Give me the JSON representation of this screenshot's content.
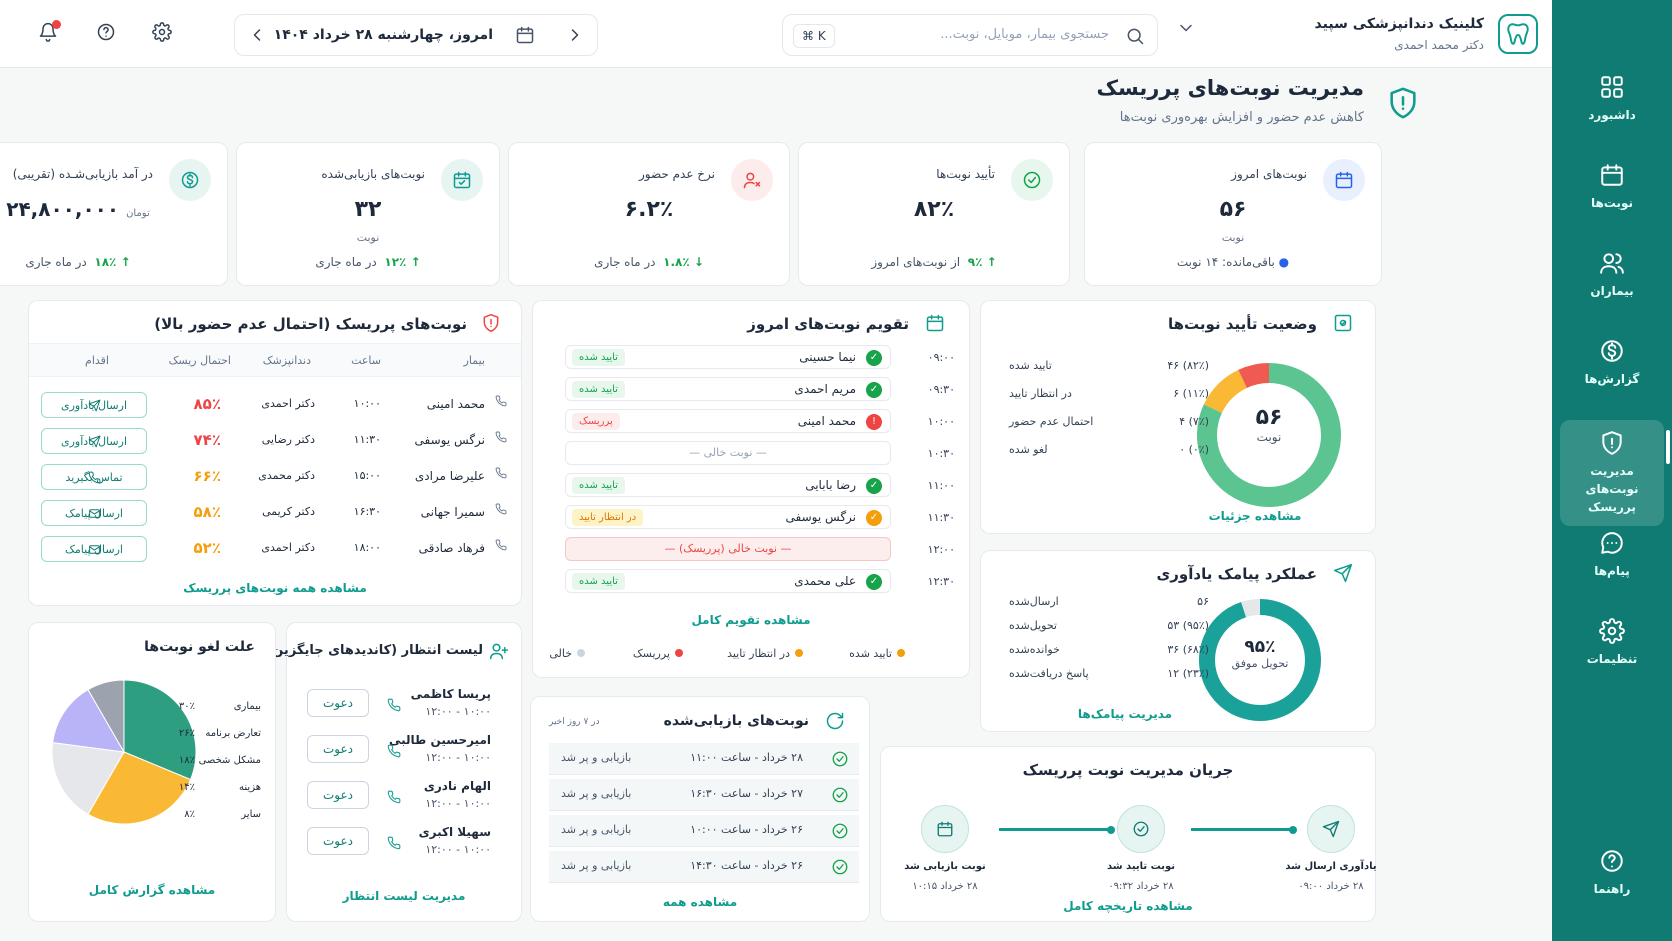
{
  "sidebar": {
    "items": [
      {
        "label": "داشبورد",
        "icon": "grid-icon"
      },
      {
        "label": "نوبت‌ها",
        "icon": "calendar-icon"
      },
      {
        "label": "بیماران",
        "icon": "users-icon"
      },
      {
        "label": "گزارش‌ها",
        "icon": "dollar-icon"
      },
      {
        "label": "مدیریت نوبت‌های پرریسک",
        "icon": "shield-icon",
        "active": true
      },
      {
        "label": "پیام‌ها",
        "icon": "message-icon"
      },
      {
        "label": "تنظیمات",
        "icon": "gear-icon"
      }
    ],
    "help_label": "راهنما"
  },
  "header": {
    "clinic_name": "کلینیک دندانپزشکی سپید",
    "doctor": "دکتر محمد احمدی",
    "search_placeholder": "جستجوی بیمار، موبایل، نوبت...",
    "search_kbd": "⌘ K",
    "date_text": "امروز، چهارشنبه ۲۸ خرداد ۱۴۰۴"
  },
  "page": {
    "title": "مدیریت نوبت‌های پرریسک",
    "subtitle": "کاهش عدم حضور و افزایش بهره‌وری نوبت‌ها"
  },
  "stats": [
    {
      "label": "نوبت‌های امروز",
      "value": "۵۶",
      "unit": "نوبت",
      "foot": "باقی‌مانده: ۱۴ نوبت",
      "foot_change": "",
      "icon": "calendar-icon",
      "color": "#2563eb"
    },
    {
      "label": "تأیید نوبت‌ها",
      "value": "۸۲٪",
      "unit": "",
      "foot": "از نوبت‌های امروز",
      "foot_change": "۹٪",
      "icon": "check-circle-icon",
      "color": "#16a34a"
    },
    {
      "label": "نرخ عدم حضور",
      "value": "۶.۲٪",
      "unit": "",
      "foot": "در ماه جاری",
      "foot_change": "۱.۸٪",
      "icon": "user-x-icon",
      "color": "#ef4444"
    },
    {
      "label": "نوبت‌های بازیابی‌شده",
      "value": "۳۲",
      "unit": "نوبت",
      "foot": "در ماه جاری",
      "foot_change": "۱۲٪",
      "icon": "calendar-check-icon",
      "color": "#0f9c8e"
    },
    {
      "label": "در آمد بازیابی‌شـده (تقریبی)",
      "value": "۲۴,۸۰۰,۰۰۰",
      "unit": "تومان",
      "foot": "در ماه جاری",
      "foot_change": "۱۸٪",
      "icon": "dollar-icon",
      "color": "#0f9c8e"
    }
  ],
  "risk": {
    "title": "نوبت‌های پرریسک (احتمال عدم حضور بالا)",
    "headers": [
      "بیمار",
      "ساعت",
      "دندانپزشک",
      "احتمال ریسک",
      "اقدام"
    ],
    "rows": [
      {
        "patient": "محمد امینی",
        "time": "۱۰:۰۰",
        "dentist": "دکتر احمدی",
        "risk": "۸۵٪",
        "risk_color": "#ef4444",
        "action": "ارسال یادآوری",
        "action_icon": "send-icon"
      },
      {
        "patient": "نرگس یوسفی",
        "time": "۱۱:۳۰",
        "dentist": "دکتر رضایی",
        "risk": "۷۴٪",
        "risk_color": "#ef4444",
        "action": "ارسال یادآوری",
        "action_icon": "send-icon"
      },
      {
        "patient": "علیرضا مرادی",
        "time": "۱۵:۰۰",
        "dentist": "دکتر محمدی",
        "risk": "۶۶٪",
        "risk_color": "#f59e0b",
        "action": "تماس بگیرید",
        "action_icon": "phone-icon"
      },
      {
        "patient": "سمیرا جهانی",
        "time": "۱۶:۳۰",
        "dentist": "دکتر کریمی",
        "risk": "۵۸٪",
        "risk_color": "#f59e0b",
        "action": "ارسال پیامک",
        "action_icon": "mail-icon"
      },
      {
        "patient": "فرهاد صادقی",
        "time": "۱۸:۰۰",
        "dentist": "دکتر احمدی",
        "risk": "۵۲٪",
        "risk_color": "#f59e0b",
        "action": "ارسال پیامک",
        "action_icon": "mail-icon"
      }
    ],
    "link": "مشاهده همه نوبت‌های پرریسک"
  },
  "calendar": {
    "title": "تقویم نوبت‌های امروز",
    "slots": [
      {
        "time": "۰۹:۰۰",
        "name": "نیما حسینی",
        "status": "تایید شده",
        "kind": "ok"
      },
      {
        "time": "۰۹:۳۰",
        "name": "مریم احمدی",
        "status": "تایید شده",
        "kind": "ok"
      },
      {
        "time": "۱۰:۰۰",
        "name": "محمد امینی",
        "status": "پرریسک",
        "kind": "risk"
      },
      {
        "time": "۱۰:۳۰",
        "name": "— نوبت خالی —",
        "status": "",
        "kind": "empty"
      },
      {
        "time": "۱۱:۰۰",
        "name": "رضا بابایی",
        "status": "تایید شده",
        "kind": "ok"
      },
      {
        "time": "۱۱:۳۰",
        "name": "نرگس یوسفی",
        "status": "در انتظار تایید",
        "kind": "pending"
      },
      {
        "time": "۱۲:۰۰",
        "name": "— نوبت خالی (پرریسک) —",
        "status": "",
        "kind": "empty-risk"
      },
      {
        "time": "۱۲:۳۰",
        "name": "علی محمدی",
        "status": "تایید شده",
        "kind": "ok"
      }
    ],
    "link": "مشاهده تقویم کامل",
    "legend": [
      {
        "label": "تایید شده",
        "color": "#f59e0b"
      },
      {
        "label": "در انتظار تایید",
        "color": "#f59e0b"
      },
      {
        "label": "پرریسک",
        "color": "#ef4444"
      },
      {
        "label": "خالی",
        "color": "#cbd5e1"
      }
    ]
  },
  "status": {
    "title": "وضعیت تأیید نوبت‌ها",
    "rows": [
      {
        "label": "تایید شده",
        "value": "۴۶ (۸۲٪)"
      },
      {
        "label": "در انتظار تایید",
        "value": "۶ (۱۱٪)"
      },
      {
        "label": "احتمال عدم حضور",
        "value": "۴ (۷٪)"
      },
      {
        "label": "لغو شده",
        "value": "۰ (۰٪)"
      }
    ],
    "center_value": "۵۶",
    "center_label": "نوبت",
    "link": "مشاهده جزئیات",
    "donut": [
      {
        "value": 82,
        "color": "#5cc491"
      },
      {
        "value": 11,
        "color": "#f9b934"
      },
      {
        "value": 7,
        "color": "#ef5b50"
      },
      {
        "value": 0,
        "color": "#cbd5e1"
      }
    ]
  },
  "sms": {
    "title": "عملکرد پیامک یادآوری",
    "rows": [
      {
        "label": "ارسال‌شده",
        "value": "۵۶"
      },
      {
        "label": "تحویل‌شده",
        "value": "۵۳ (۹۵٪)"
      },
      {
        "label": "خوانده‌شده",
        "value": "۳۶ (۶۸٪)"
      },
      {
        "label": "پاسخ دریافت‌شده",
        "value": "۱۲ (۲۳٪)"
      }
    ],
    "center_value": "۹۵٪",
    "center_label": "تحویل موفق",
    "ring_percent": 95,
    "link": "مدیریت پیامک‌ها"
  },
  "causes": {
    "title": "علت لغو نوبت‌ها",
    "items": [
      {
        "label": "بیماری",
        "pct": "۳۰٪",
        "value": 30,
        "color": "#2e9e80"
      },
      {
        "label": "تعارض برنامه",
        "pct": "۲۶٪",
        "value": 26,
        "color": "#f9b934"
      },
      {
        "label": "مشکل شخصی",
        "pct": "۱۸٪",
        "value": 18,
        "color": "#e5e7eb"
      },
      {
        "label": "هزینه",
        "pct": "۱۴٪",
        "value": 14,
        "color": "#b9b4f7"
      },
      {
        "label": "سایر",
        "pct": "۸٪",
        "value": 8,
        "color": "#9ca3af"
      }
    ],
    "link": "مشاهده گزارش کامل"
  },
  "waitlist": {
    "title": "لیست انتظار (کاندیدهای جایگزین)",
    "items": [
      {
        "name": "پریسا کاظمی",
        "time": "۱۰:۰۰ - ۱۲:۰۰",
        "btn": "دعوت"
      },
      {
        "name": "امیرحسین طالبی",
        "time": "۱۰:۰۰ - ۱۲:۰۰",
        "btn": "دعوت"
      },
      {
        "name": "الهام نادری",
        "time": "۱۰:۰۰ - ۱۲:۰۰",
        "btn": "دعوت"
      },
      {
        "name": "سهیلا اکبری",
        "time": "۱۰:۰۰ - ۱۲:۰۰",
        "btn": "دعوت"
      }
    ],
    "link": "مدیریت لیست انتظار"
  },
  "recovered": {
    "title": "نوبت‌های بازیابی‌شده",
    "range": "در ۷ روز اخیر",
    "rows": [
      {
        "date": "۲۸ خرداد - ساعت ۱۱:۰۰",
        "status": "بازیابی و پر شد"
      },
      {
        "date": "۲۷ خرداد - ساعت ۱۶:۳۰",
        "status": "بازیابی و پر شد"
      },
      {
        "date": "۲۶ خرداد - ساعت ۱۰:۰۰",
        "status": "بازیابی و پر شد"
      },
      {
        "date": "۲۶ خرداد - ساعت ۱۴:۳۰",
        "status": "بازیابی و پر شد"
      }
    ],
    "link": "مشاهده همه"
  },
  "flow": {
    "title": "جریان مدیریت نوبت پرریسک",
    "steps": [
      {
        "label": "نوبت بازیابی شد",
        "time": "۲۸ خرداد ۱۰:۱۵",
        "icon": "calendar-icon"
      },
      {
        "label": "نوبت تایید شد",
        "time": "۲۸ خرداد ۰۹:۳۲",
        "icon": "check-circle-icon"
      },
      {
        "label": "یادآوری ارسال شد",
        "time": "۲۸ خرداد ۰۹:۰۰",
        "icon": "send-icon"
      }
    ],
    "link": "مشاهده تاریخچه کامل"
  }
}
